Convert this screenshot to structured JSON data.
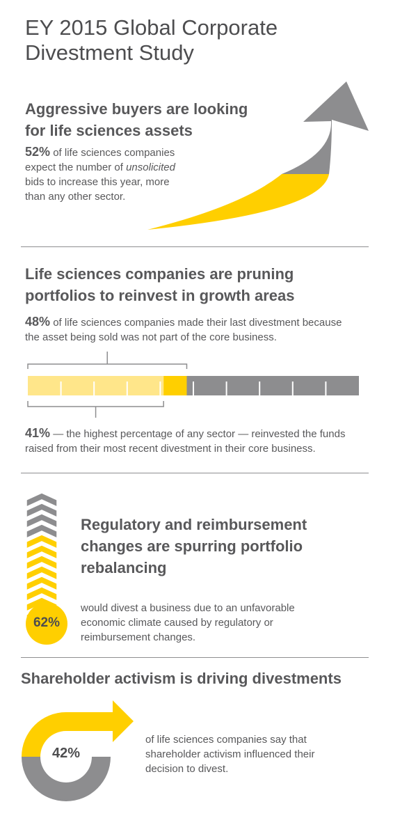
{
  "page": {
    "title_line1": "EY 2015 Global Corporate",
    "title_line2": "Divestment Study"
  },
  "colors": {
    "yellow": "#ffcf00",
    "light_yellow": "#ffe68a",
    "gray": "#8d8d8f",
    "text": "#58585a"
  },
  "section1": {
    "heading_line1": "Aggressive buyers are looking",
    "heading_line2": "for life sciences assets",
    "percent": "52%",
    "text_a": " of life sciences companies",
    "text_b": "expect the number of ",
    "text_em": "unsolicited",
    "text_c": "bids to increase this year, more",
    "text_d": "than any other sector.",
    "icon": "rising-arrow-icon"
  },
  "section2": {
    "heading_line1": "Life sciences companies are pruning",
    "heading_line2": "portfolios to reinvest in growth areas",
    "percent1": "48%",
    "text1_a": " of life sciences companies made their last divestment because",
    "text1_b": "the asset being sold was not part of the core business.",
    "percent2": "41%",
    "text2_a": " — the highest percentage of any sector — reinvested the funds",
    "text2_b": "raised from their most recent divestment in their core business.",
    "bar": {
      "total_segments": 10,
      "value_48": 0.48,
      "value_41": 0.41
    }
  },
  "section3": {
    "heading_line1": "Regulatory and reimbursement",
    "heading_line2": "changes are spurring portfolio",
    "heading_line3": "rebalancing",
    "percent": "62%",
    "text_a": "would divest a business due to an unfavorable",
    "text_b": "economic climate caused by regulatory or",
    "text_c": "reimbursement changes.",
    "thermometer_fill": 0.62,
    "icon": "chevron-thermometer-icon"
  },
  "section4": {
    "heading": "Shareholder activism is driving divestments",
    "percent": "42%",
    "text_a": "of life sciences companies say that",
    "text_b": "shareholder activism influenced their",
    "text_c": "decision to divest.",
    "icon": "circular-arrow-icon"
  }
}
